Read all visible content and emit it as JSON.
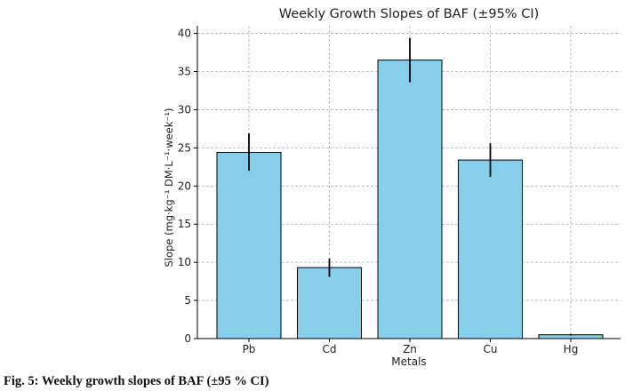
{
  "chart_data": {
    "type": "bar",
    "title": "Weekly Growth Slopes of BAF (±95% CI)",
    "xlabel": "Metals",
    "ylabel": "Slope (mg·kg⁻¹ DM·L⁻¹·week⁻¹)",
    "categories": [
      "Pb",
      "Cd",
      "Zn",
      "Cu",
      "Hg"
    ],
    "values": [
      24.4,
      9.3,
      36.5,
      23.4,
      0.5
    ],
    "ci_low": [
      22.0,
      8.1,
      33.6,
      21.2,
      0.4
    ],
    "ci_high": [
      26.9,
      10.5,
      39.4,
      25.6,
      0.6
    ],
    "ylim": [
      0,
      41
    ],
    "yticks": [
      0,
      5,
      10,
      15,
      20,
      25,
      30,
      35,
      40
    ],
    "grid": true,
    "bar_color": "#87ceeb",
    "edge_color": "#000000",
    "errorbar_color": "#000000"
  },
  "caption": "Fig. 5: Weekly growth slopes of BAF (±95 % CI)"
}
